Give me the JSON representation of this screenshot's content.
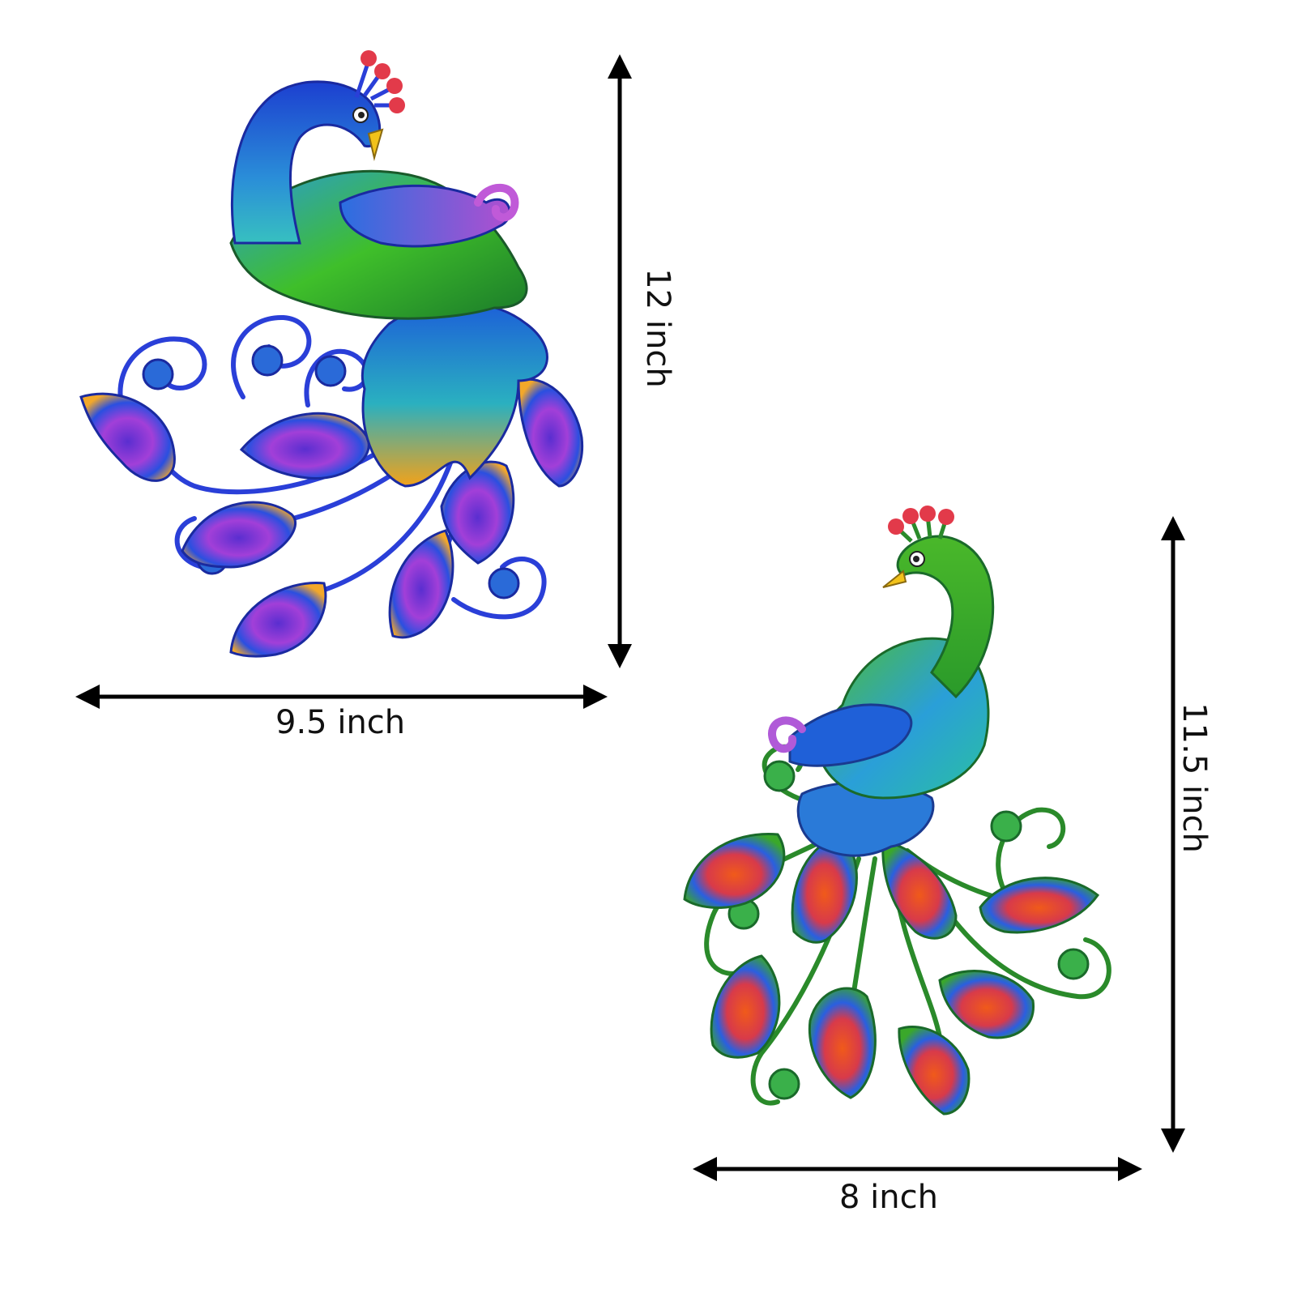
{
  "product_a": {
    "name": "blue-peacock-wall-art",
    "width_label": "9.5 inch",
    "height_label": "12 inch",
    "colors": {
      "body": "#1a4fd6",
      "neck": "#2a9bd8",
      "wing": "#4bb52a",
      "tail": "#f2a21a",
      "feather_center": "#9a3fd0"
    }
  },
  "product_b": {
    "name": "green-peacock-wall-art",
    "width_label": "8 inch",
    "height_label": "11.5 inch",
    "colors": {
      "body": "#3aa52a",
      "neck": "#4fbf2c",
      "wing": "#1a8fd6",
      "tail": "#1f60d8",
      "feather_center": "#e2572a"
    }
  },
  "arrow_color": "#000000",
  "crest_color": "#e23a4a"
}
